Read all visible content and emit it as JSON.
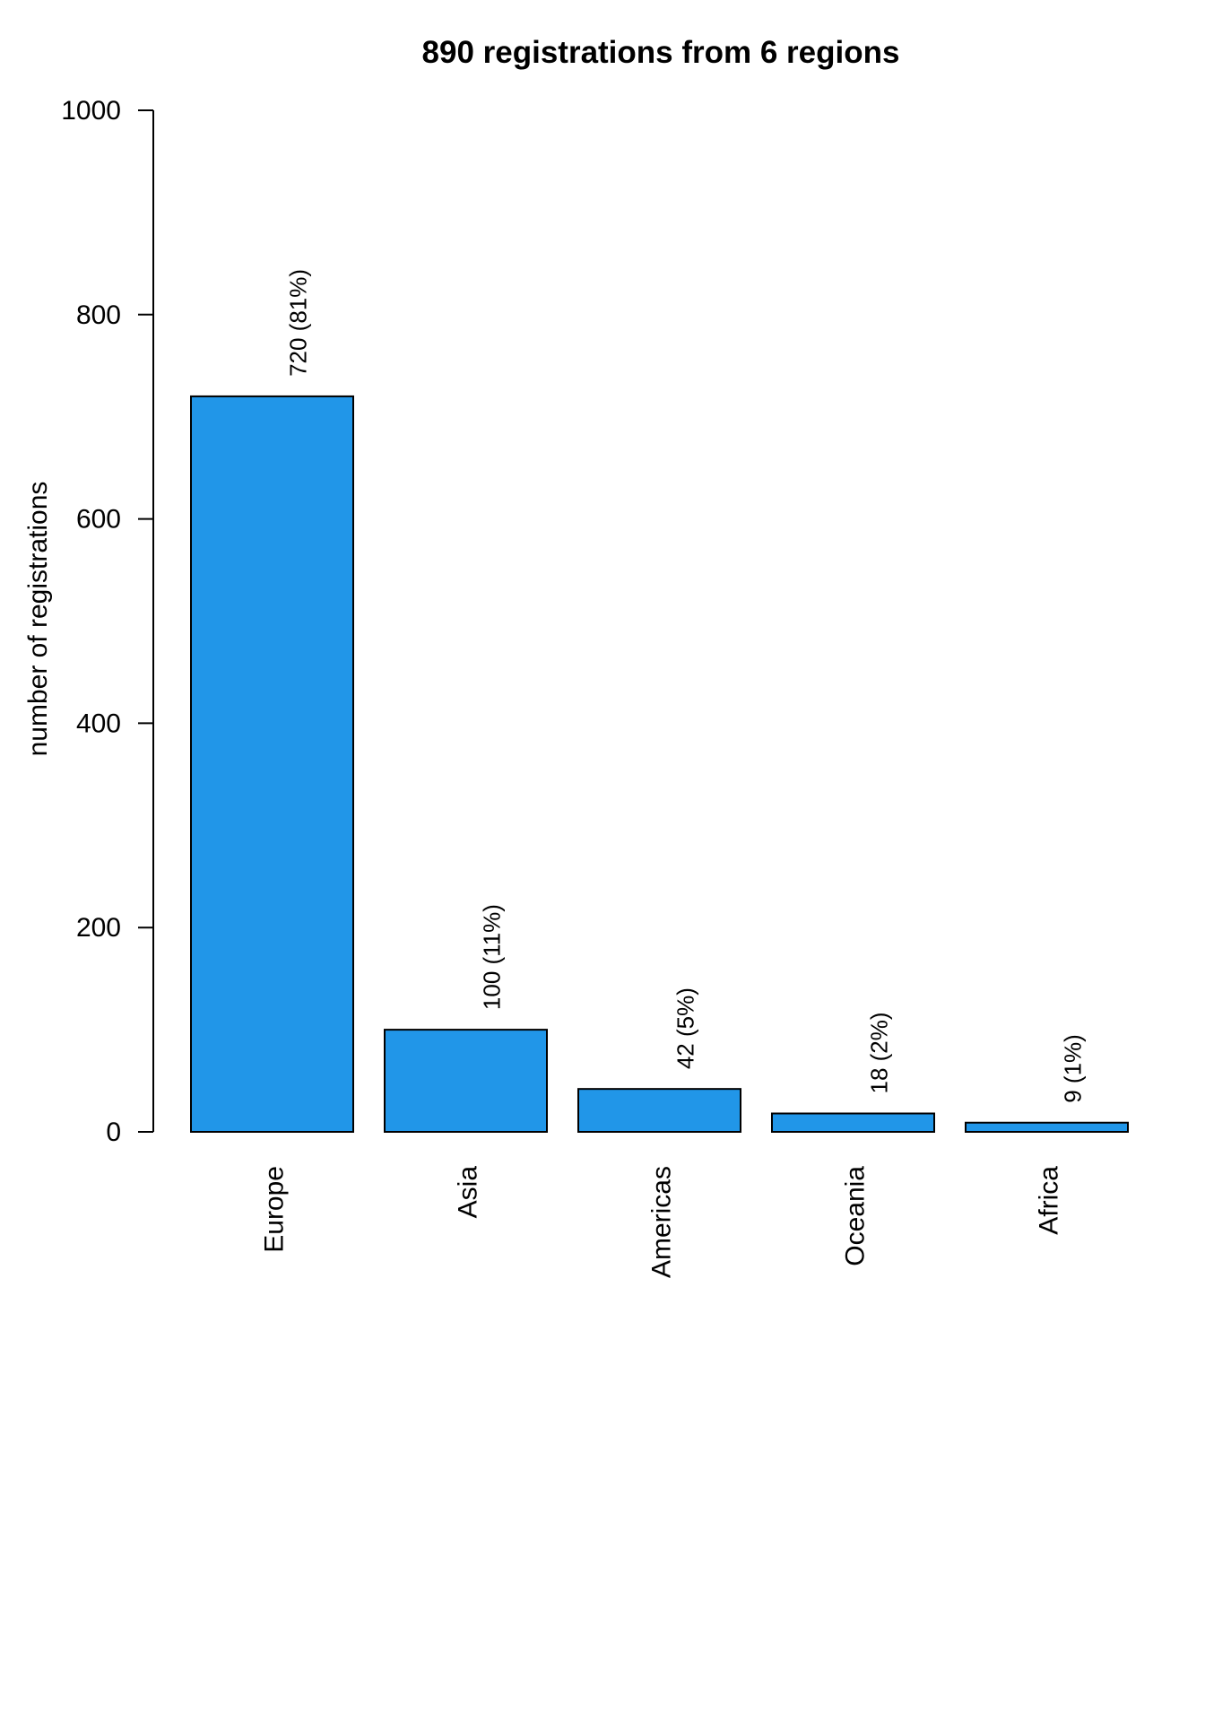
{
  "chart_data": {
    "type": "bar",
    "title": "890 registrations from 6 regions",
    "xlabel": "",
    "ylabel": "number of registrations",
    "categories": [
      "Europe",
      "Asia",
      "Americas",
      "Oceania",
      "Africa"
    ],
    "values": [
      720,
      100,
      42,
      18,
      9
    ],
    "data_labels": [
      "720 (81%)",
      "100 (11%)",
      "42 (5%)",
      "18 (2%)",
      "9 (1%)"
    ],
    "yticks": [
      0,
      200,
      400,
      600,
      800,
      1000
    ],
    "ylim": [
      0,
      1000
    ],
    "bar_color": "#2196E8",
    "grid": false,
    "legend": "none"
  }
}
